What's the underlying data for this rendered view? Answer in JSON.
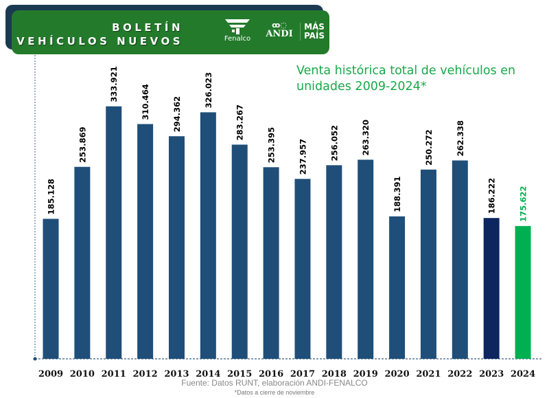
{
  "header": {
    "line1": "BOLETÍN",
    "line2": "VEHÍCULOS NUEVOS",
    "logos": [
      "Fenalco",
      "ANDI",
      "MÁS",
      "PAÍS"
    ]
  },
  "footer": {
    "source": "Fuente: Datos RUNT, elaboración ANDI-FENALCO",
    "note": "*Datos a cierre de noviembre"
  },
  "chart_data": {
    "type": "bar",
    "title": "Venta histórica total de vehículos en unidades 2009-2024*",
    "title_lines": [
      "Venta histórica total de vehículos en",
      "unidades 2009-2024*"
    ],
    "categories": [
      "2009",
      "2010",
      "2011",
      "2012",
      "2013",
      "2014",
      "2015",
      "2016",
      "2017",
      "2018",
      "2019",
      "2020",
      "2021",
      "2022",
      "2023",
      "2024"
    ],
    "values": [
      185128,
      253869,
      333921,
      310464,
      294362,
      326023,
      283267,
      253395,
      237957,
      256052,
      263320,
      188391,
      250272,
      262338,
      186222,
      175622
    ],
    "labels": [
      "185.128",
      "253.869",
      "333.921",
      "310.464",
      "294.362",
      "326.023",
      "283.267",
      "253.395",
      "237.957",
      "256.052",
      "263.320",
      "188.391",
      "250.272",
      "262.338",
      "186.222",
      "175.622"
    ],
    "colors": [
      "#1f4e79",
      "#1f4e79",
      "#1f4e79",
      "#1f4e79",
      "#1f4e79",
      "#1f4e79",
      "#1f4e79",
      "#1f4e79",
      "#1f4e79",
      "#1f4e79",
      "#1f4e79",
      "#1f4e79",
      "#1f4e79",
      "#1f4e79",
      "#0d2660",
      "#00b050"
    ],
    "label_colors": [
      "#000",
      "#000",
      "#000",
      "#000",
      "#000",
      "#000",
      "#000",
      "#000",
      "#000",
      "#000",
      "#000",
      "#000",
      "#000",
      "#000",
      "#000",
      "#00b050"
    ],
    "ylim": [
      0,
      400000
    ],
    "grid": false,
    "xlabel": "",
    "ylabel": ""
  }
}
